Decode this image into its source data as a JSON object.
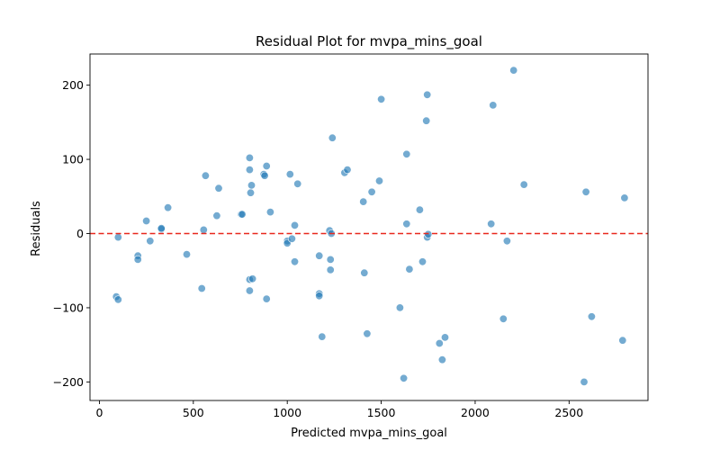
{
  "chart_data": {
    "type": "scatter",
    "title": "Residual Plot for mvpa_mins_goal",
    "xlabel": "Predicted mvpa_mins_goal",
    "ylabel": "Residuals",
    "xlim": [
      -50,
      2920
    ],
    "ylim": [
      -225,
      242
    ],
    "xticks": [
      0,
      500,
      1000,
      1500,
      2000,
      2500
    ],
    "yticks": [
      -200,
      -100,
      0,
      100,
      200
    ],
    "reference_line": {
      "y": 0,
      "color": "#e8281e",
      "style": "dashed"
    },
    "point_color": "#1f77b4",
    "points": [
      [
        90,
        -85
      ],
      [
        100,
        -89
      ],
      [
        100,
        -5
      ],
      [
        205,
        -30
      ],
      [
        205,
        -35
      ],
      [
        250,
        17
      ],
      [
        270,
        -10
      ],
      [
        330,
        6
      ],
      [
        330,
        7
      ],
      [
        365,
        35
      ],
      [
        465,
        -28
      ],
      [
        545,
        -74
      ],
      [
        555,
        5
      ],
      [
        565,
        78
      ],
      [
        625,
        24
      ],
      [
        635,
        61
      ],
      [
        755,
        26
      ],
      [
        760,
        26
      ],
      [
        800,
        102
      ],
      [
        800,
        86
      ],
      [
        805,
        55
      ],
      [
        810,
        65
      ],
      [
        800,
        -62
      ],
      [
        815,
        -61
      ],
      [
        800,
        -77
      ],
      [
        875,
        80
      ],
      [
        880,
        78
      ],
      [
        890,
        91
      ],
      [
        890,
        -88
      ],
      [
        910,
        29
      ],
      [
        1000,
        -10
      ],
      [
        1000,
        -13
      ],
      [
        1015,
        80
      ],
      [
        1025,
        -7
      ],
      [
        1040,
        11
      ],
      [
        1040,
        -38
      ],
      [
        1055,
        67
      ],
      [
        1170,
        -30
      ],
      [
        1170,
        -81
      ],
      [
        1170,
        -84
      ],
      [
        1185,
        -139
      ],
      [
        1225,
        4
      ],
      [
        1230,
        -35
      ],
      [
        1235,
        0
      ],
      [
        1230,
        -49
      ],
      [
        1240,
        129
      ],
      [
        1305,
        82
      ],
      [
        1320,
        86
      ],
      [
        1405,
        43
      ],
      [
        1410,
        -53
      ],
      [
        1425,
        -135
      ],
      [
        1450,
        56
      ],
      [
        1490,
        71
      ],
      [
        1500,
        181
      ],
      [
        1600,
        -100
      ],
      [
        1620,
        -195
      ],
      [
        1635,
        107
      ],
      [
        1635,
        13
      ],
      [
        1650,
        -48
      ],
      [
        1705,
        32
      ],
      [
        1720,
        -38
      ],
      [
        1740,
        152
      ],
      [
        1745,
        187
      ],
      [
        1745,
        -5
      ],
      [
        1750,
        -1
      ],
      [
        1810,
        -148
      ],
      [
        1825,
        -170
      ],
      [
        1840,
        -140
      ],
      [
        2085,
        13
      ],
      [
        2095,
        173
      ],
      [
        2150,
        -115
      ],
      [
        2170,
        -10
      ],
      [
        2205,
        220
      ],
      [
        2260,
        66
      ],
      [
        2590,
        56
      ],
      [
        2580,
        -200
      ],
      [
        2620,
        -112
      ],
      [
        2785,
        -144
      ],
      [
        2795,
        48
      ]
    ]
  }
}
